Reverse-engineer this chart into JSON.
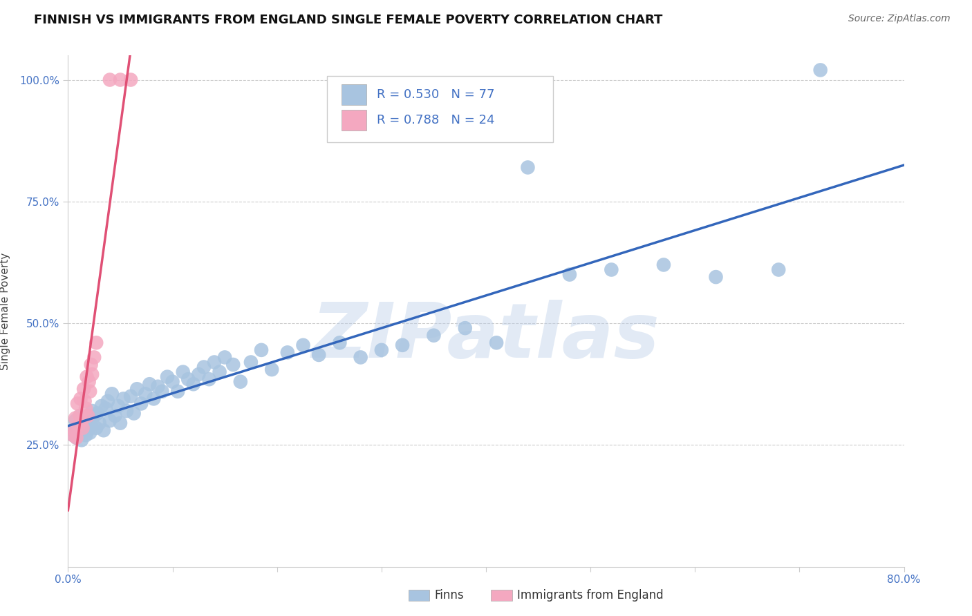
{
  "title": "FINNISH VS IMMIGRANTS FROM ENGLAND SINGLE FEMALE POVERTY CORRELATION CHART",
  "source": "Source: ZipAtlas.com",
  "ylabel": "Single Female Poverty",
  "watermark": "ZIPatlas",
  "xlim": [
    0.0,
    0.8
  ],
  "ylim": [
    0.0,
    1.05
  ],
  "xtick_positions": [
    0.0,
    0.1,
    0.2,
    0.3,
    0.4,
    0.5,
    0.6,
    0.7,
    0.8
  ],
  "xticklabels": [
    "0.0%",
    "",
    "",
    "",
    "",
    "",
    "",
    "",
    "80.0%"
  ],
  "ytick_positions": [
    0.25,
    0.5,
    0.75,
    1.0
  ],
  "yticklabels": [
    "25.0%",
    "50.0%",
    "75.0%",
    "100.0%"
  ],
  "grid_color": "#cccccc",
  "background_color": "#ffffff",
  "finn_color": "#a8c4e0",
  "england_color": "#f4a8c0",
  "finn_line_color": "#3366bb",
  "england_line_color": "#e05075",
  "finn_R": 0.53,
  "finn_N": 77,
  "england_R": 0.788,
  "england_N": 24,
  "stat_color": "#4472c4",
  "label_color": "#333333",
  "tick_color": "#4472c4",
  "title_fontsize": 13,
  "axis_label_fontsize": 11,
  "tick_fontsize": 11,
  "finn_x": [
    0.005,
    0.006,
    0.007,
    0.008,
    0.009,
    0.01,
    0.011,
    0.012,
    0.013,
    0.014,
    0.015,
    0.016,
    0.017,
    0.018,
    0.019,
    0.02,
    0.021,
    0.022,
    0.023,
    0.025,
    0.027,
    0.028,
    0.03,
    0.032,
    0.034,
    0.036,
    0.038,
    0.04,
    0.042,
    0.045,
    0.048,
    0.05,
    0.053,
    0.056,
    0.06,
    0.063,
    0.066,
    0.07,
    0.074,
    0.078,
    0.082,
    0.086,
    0.09,
    0.095,
    0.1,
    0.105,
    0.11,
    0.115,
    0.12,
    0.125,
    0.13,
    0.135,
    0.14,
    0.145,
    0.15,
    0.158,
    0.165,
    0.175,
    0.185,
    0.195,
    0.21,
    0.225,
    0.24,
    0.26,
    0.28,
    0.3,
    0.32,
    0.35,
    0.38,
    0.41,
    0.44,
    0.48,
    0.52,
    0.57,
    0.62,
    0.68,
    0.72
  ],
  "finn_y": [
    0.27,
    0.28,
    0.3,
    0.265,
    0.285,
    0.275,
    0.29,
    0.31,
    0.26,
    0.275,
    0.295,
    0.285,
    0.27,
    0.3,
    0.28,
    0.305,
    0.275,
    0.29,
    0.32,
    0.31,
    0.285,
    0.315,
    0.295,
    0.33,
    0.28,
    0.325,
    0.34,
    0.3,
    0.355,
    0.31,
    0.33,
    0.295,
    0.345,
    0.32,
    0.35,
    0.315,
    0.365,
    0.335,
    0.355,
    0.375,
    0.345,
    0.37,
    0.36,
    0.39,
    0.38,
    0.36,
    0.4,
    0.385,
    0.375,
    0.395,
    0.41,
    0.385,
    0.42,
    0.4,
    0.43,
    0.415,
    0.38,
    0.42,
    0.445,
    0.405,
    0.44,
    0.455,
    0.435,
    0.46,
    0.43,
    0.445,
    0.455,
    0.475,
    0.49,
    0.46,
    0.82,
    0.6,
    0.61,
    0.62,
    0.595,
    0.61,
    1.02
  ],
  "england_x": [
    0.005,
    0.006,
    0.007,
    0.008,
    0.009,
    0.01,
    0.011,
    0.012,
    0.013,
    0.014,
    0.015,
    0.016,
    0.017,
    0.018,
    0.019,
    0.02,
    0.021,
    0.022,
    0.023,
    0.025,
    0.027,
    0.04,
    0.05,
    0.06
  ],
  "england_y": [
    0.27,
    0.28,
    0.305,
    0.265,
    0.335,
    0.29,
    0.31,
    0.345,
    0.3,
    0.285,
    0.365,
    0.34,
    0.325,
    0.39,
    0.31,
    0.38,
    0.36,
    0.415,
    0.395,
    0.43,
    0.46,
    1.0,
    1.0,
    1.0
  ]
}
